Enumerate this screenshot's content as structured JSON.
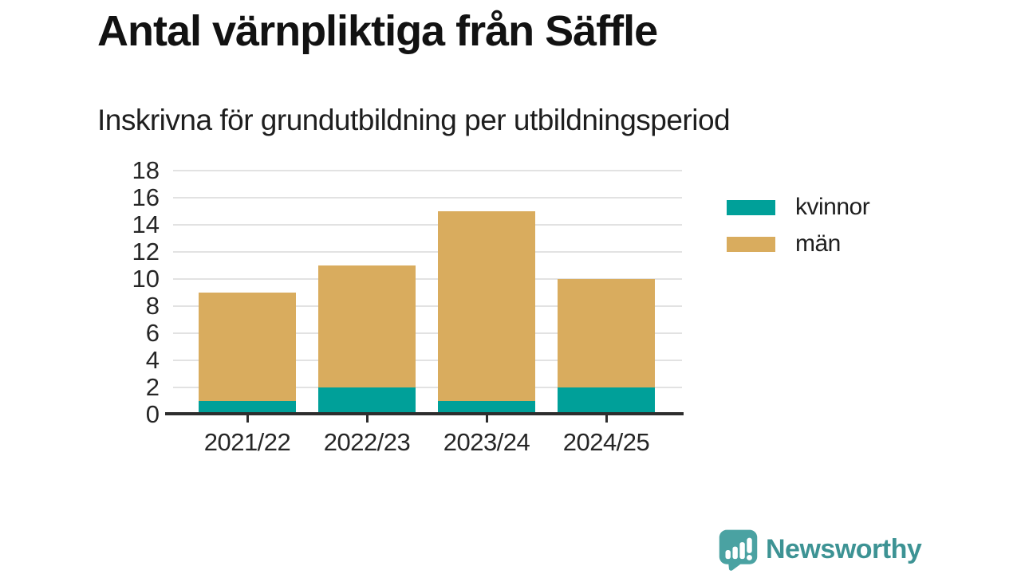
{
  "header": {
    "title": "Antal värnpliktiga från Säffle",
    "subtitle": "Inskrivna för grundutbildning per utbildningsperiod"
  },
  "chart_data": {
    "type": "bar",
    "stacked": true,
    "title": "Antal värnpliktiga från Säffle",
    "subtitle": "Inskrivna för grundutbildning per utbildningsperiod",
    "categories": [
      "2021/22",
      "2022/23",
      "2023/24",
      "2024/25"
    ],
    "series": [
      {
        "name": "kvinnor",
        "color": "#00a099",
        "values": [
          1,
          2,
          1,
          2
        ]
      },
      {
        "name": "män",
        "color": "#d9ac5e",
        "values": [
          8,
          9,
          14,
          8
        ]
      }
    ],
    "stack_totals": [
      9,
      11,
      15,
      10
    ],
    "ylim": [
      0,
      18
    ],
    "yticks": [
      0,
      2,
      4,
      6,
      8,
      10,
      12,
      14,
      16,
      18
    ],
    "xlabel": "",
    "ylabel": "",
    "grid": "horizontal",
    "gridline_color": "#e2e2e2",
    "axis_color": "#2d2d2d",
    "legend_position": "right"
  },
  "legend": {
    "items": [
      {
        "label": "kvinnor",
        "color": "#00a099"
      },
      {
        "label": "män",
        "color": "#d9ac5e"
      }
    ]
  },
  "footer": {
    "brand": "Newsworthy",
    "brand_color": "#3d9394",
    "logo_icon_color": "#4aa2a2",
    "logo_icon": "speech-bubble-bar-chart-icon"
  }
}
